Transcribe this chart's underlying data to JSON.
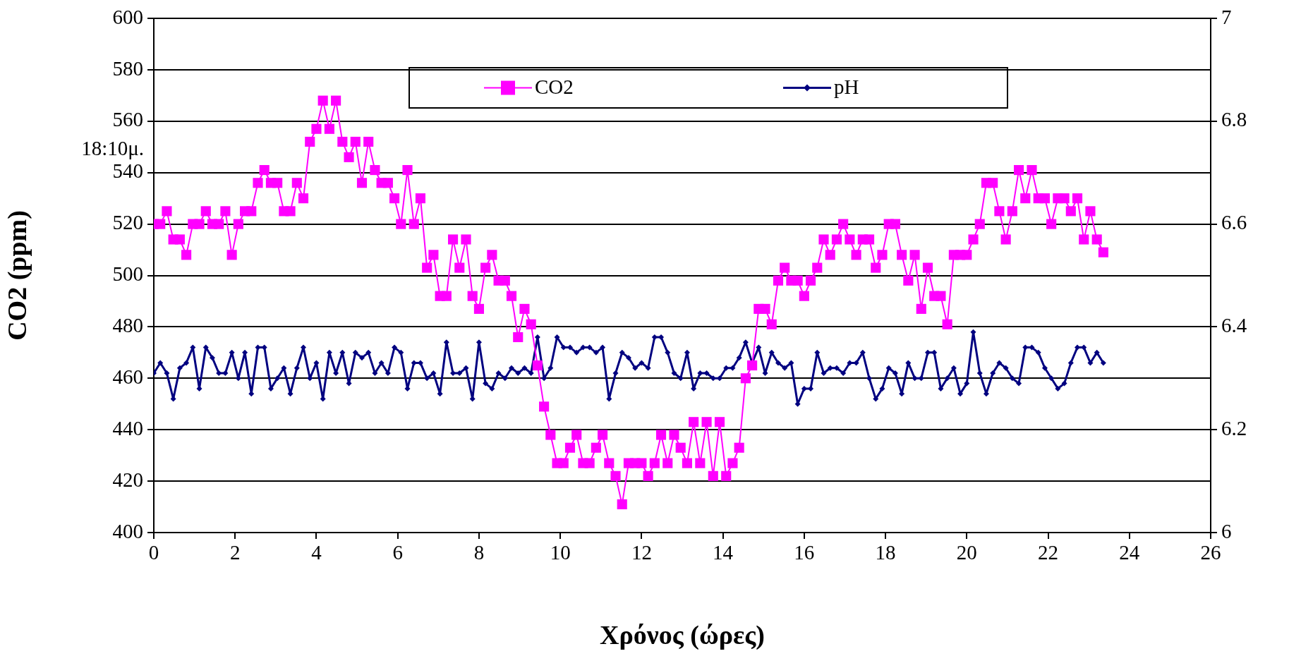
{
  "chart_data": {
    "type": "line",
    "xlabel": "Χρόνος (ώρες)",
    "ylabel": "CO2 (ppm)",
    "annotations": [
      "18:10μ."
    ],
    "x": [
      0,
      0.16,
      0.32,
      0.48,
      0.64,
      0.8,
      0.96,
      1.12,
      1.28,
      1.44,
      1.6,
      1.76,
      1.92,
      2.08,
      2.24,
      2.4,
      2.56,
      2.72,
      2.88,
      3.04,
      3.2,
      3.36,
      3.52,
      3.68,
      3.84,
      4,
      4.16,
      4.32,
      4.48,
      4.64,
      4.8,
      4.96,
      5.12,
      5.28,
      5.44,
      5.6,
      5.76,
      5.92,
      6.08,
      6.24,
      6.4,
      6.56,
      6.72,
      6.88,
      7.04,
      7.2,
      7.36,
      7.52,
      7.68,
      7.84,
      8,
      8.16,
      8.32,
      8.48,
      8.64,
      8.8,
      8.96,
      9.12,
      9.28,
      9.44,
      9.6,
      9.76,
      9.92,
      10.08,
      10.24,
      10.4,
      10.56,
      10.72,
      10.88,
      11.04,
      11.2,
      11.36,
      11.52,
      11.68,
      11.84,
      12,
      12.16,
      12.32,
      12.48,
      12.64,
      12.8,
      12.96,
      13.12,
      13.28,
      13.44,
      13.6,
      13.76,
      13.92,
      14.08,
      14.24,
      14.4,
      14.56,
      14.72,
      14.88,
      15.04,
      15.2,
      15.36,
      15.52,
      15.68,
      15.84,
      16,
      16.16,
      16.32,
      16.48,
      16.64,
      16.8,
      16.96,
      17.12,
      17.28,
      17.44,
      17.6,
      17.76,
      17.92,
      18.08,
      18.24,
      18.4,
      18.56,
      18.72,
      18.88,
      19.04,
      19.2,
      19.36,
      19.52,
      19.68,
      19.84,
      20,
      20.16,
      20.32,
      20.48,
      20.64,
      20.8,
      20.96,
      21.12,
      21.28,
      21.44,
      21.6,
      21.76,
      21.92,
      22.08,
      22.24,
      22.4,
      22.56,
      22.72,
      22.88,
      23.04,
      23.2,
      23.36
    ],
    "series": [
      {
        "name": "CO2",
        "color": "#ff00ff",
        "marker": "square",
        "values": [
          520,
          520,
          525,
          514,
          514,
          508,
          520,
          520,
          525,
          520,
          520,
          525,
          508,
          520,
          525,
          525,
          536,
          541,
          536,
          536,
          525,
          525,
          536,
          530,
          552,
          557,
          568,
          557,
          568,
          552,
          546,
          552,
          536,
          552,
          541,
          536,
          536,
          530,
          520,
          541,
          520,
          530,
          503,
          508,
          492,
          492,
          514,
          503,
          514,
          492,
          487,
          503,
          508,
          498,
          498,
          492,
          476,
          487,
          481,
          465,
          449,
          438,
          427,
          427,
          433,
          438,
          427,
          427,
          433,
          438,
          427,
          422,
          411,
          427,
          427,
          427,
          422,
          427,
          438,
          427,
          438,
          433,
          427,
          443,
          427,
          443,
          422,
          443,
          422,
          427,
          433,
          460,
          465,
          487,
          487,
          481,
          498,
          503,
          498,
          498,
          492,
          498,
          503,
          514,
          508,
          514,
          520,
          514,
          508,
          514,
          514,
          503,
          508,
          520,
          520,
          508,
          498,
          508,
          487,
          503,
          492,
          492,
          481,
          508,
          508,
          508,
          514,
          520,
          536,
          536,
          525,
          514,
          525,
          541,
          530,
          541,
          530,
          530,
          520,
          530,
          530,
          525,
          530,
          514,
          525,
          514,
          509
        ]
      },
      {
        "name": "pH",
        "color": "#000080",
        "marker": "diamond",
        "axis": "y2",
        "values": [
          6.31,
          6.33,
          6.31,
          6.26,
          6.32,
          6.33,
          6.36,
          6.28,
          6.36,
          6.34,
          6.31,
          6.31,
          6.35,
          6.3,
          6.35,
          6.27,
          6.36,
          6.36,
          6.28,
          6.3,
          6.32,
          6.27,
          6.32,
          6.36,
          6.3,
          6.33,
          6.26,
          6.35,
          6.31,
          6.35,
          6.29,
          6.35,
          6.34,
          6.35,
          6.31,
          6.33,
          6.31,
          6.36,
          6.35,
          6.28,
          6.33,
          6.33,
          6.3,
          6.31,
          6.27,
          6.37,
          6.31,
          6.31,
          6.32,
          6.26,
          6.37,
          6.29,
          6.28,
          6.31,
          6.3,
          6.32,
          6.31,
          6.32,
          6.31,
          6.38,
          6.3,
          6.32,
          6.38,
          6.36,
          6.36,
          6.35,
          6.36,
          6.36,
          6.35,
          6.36,
          6.26,
          6.31,
          6.35,
          6.34,
          6.32,
          6.33,
          6.32,
          6.38,
          6.38,
          6.35,
          6.31,
          6.3,
          6.35,
          6.28,
          6.31,
          6.31,
          6.3,
          6.3,
          6.32,
          6.32,
          6.34,
          6.37,
          6.33,
          6.36,
          6.31,
          6.35,
          6.33,
          6.32,
          6.33,
          6.25,
          6.28,
          6.28,
          6.35,
          6.31,
          6.32,
          6.32,
          6.31,
          6.33,
          6.33,
          6.35,
          6.3,
          6.26,
          6.28,
          6.32,
          6.31,
          6.27,
          6.33,
          6.3,
          6.3,
          6.35,
          6.35,
          6.28,
          6.3,
          6.32,
          6.27,
          6.29,
          6.39,
          6.31,
          6.27,
          6.31,
          6.33,
          6.32,
          6.3,
          6.29,
          6.36,
          6.36,
          6.35,
          6.32,
          6.3,
          6.28,
          6.29,
          6.33,
          6.36,
          6.36,
          6.33,
          6.35,
          6.33
        ]
      }
    ],
    "xlim": [
      0,
      26
    ],
    "xticks": [
      0,
      2,
      4,
      6,
      8,
      10,
      12,
      14,
      16,
      18,
      20,
      22,
      24,
      26
    ],
    "ylim": [
      400,
      600
    ],
    "yticks": [
      400,
      420,
      440,
      460,
      480,
      500,
      520,
      540,
      560,
      580,
      600
    ],
    "y2lim": [
      6,
      7
    ],
    "y2ticks": [
      6,
      6.2,
      6.4,
      6.6,
      6.8,
      7
    ],
    "grid": "y",
    "legend": "top"
  }
}
